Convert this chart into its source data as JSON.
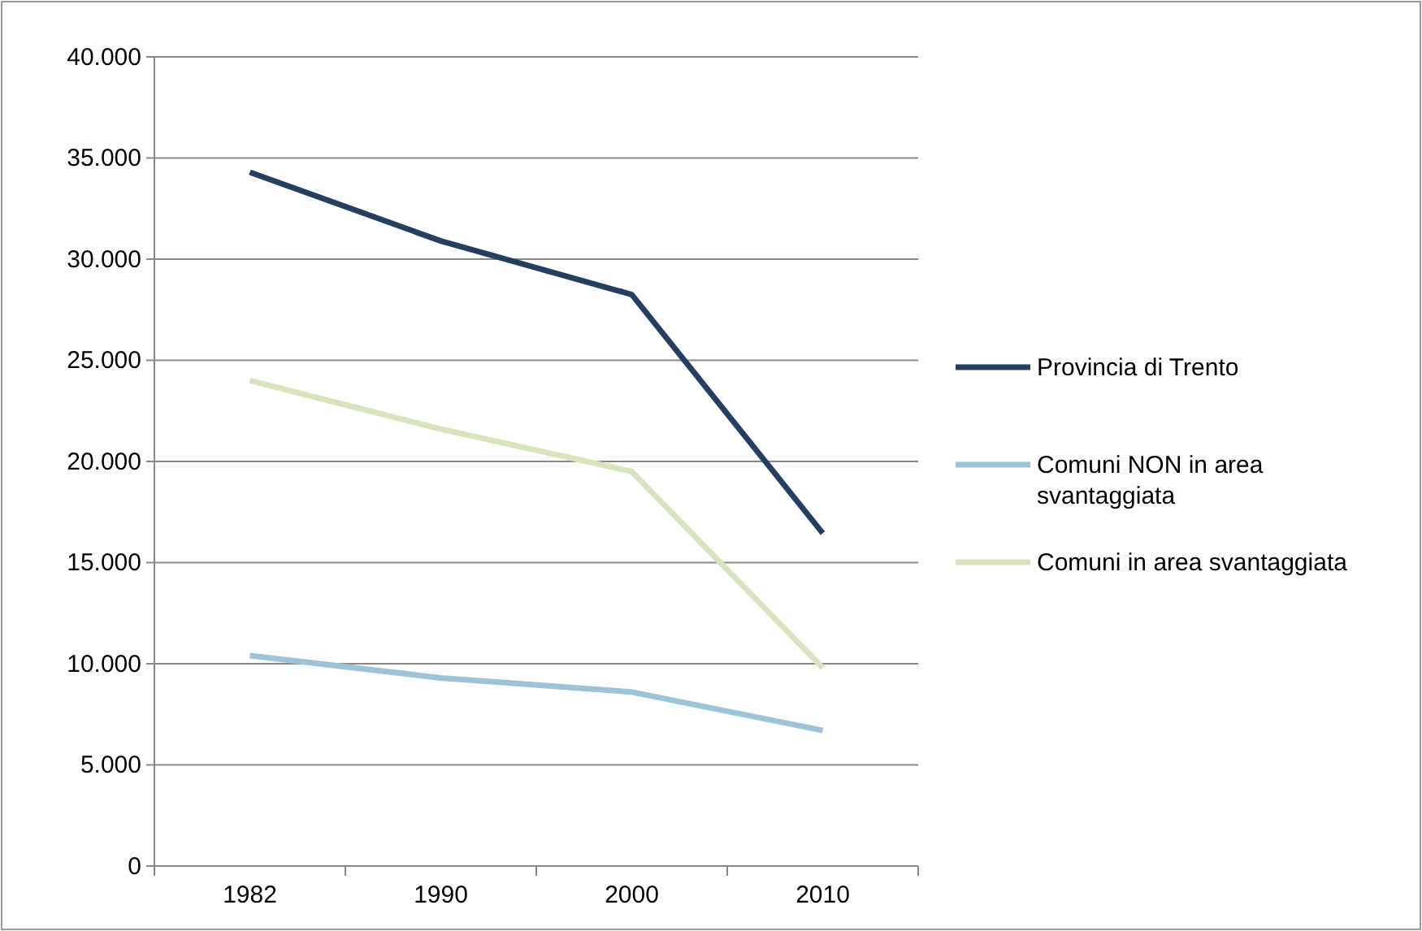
{
  "chart_data": {
    "type": "line",
    "categories": [
      "1982",
      "1990",
      "2000",
      "2010"
    ],
    "series": [
      {
        "name": "Provincia di Trento",
        "color": "#243f60",
        "values": [
          34300,
          30900,
          28250,
          16450
        ]
      },
      {
        "name": "Comuni NON in area svantaggiata",
        "color": "#9dc3d8",
        "values": [
          10400,
          9300,
          8600,
          6700
        ]
      },
      {
        "name": "Comuni in area svantaggiata",
        "color": "#d7e4bd",
        "values": [
          24000,
          21600,
          19500,
          9800
        ]
      }
    ],
    "ylim": [
      0,
      40000
    ],
    "yticks": [
      {
        "value": 0,
        "label": "0"
      },
      {
        "value": 5000,
        "label": "5.000"
      },
      {
        "value": 10000,
        "label": "10.000"
      },
      {
        "value": 15000,
        "label": "15.000"
      },
      {
        "value": 20000,
        "label": "20.000"
      },
      {
        "value": 25000,
        "label": "25.000"
      },
      {
        "value": 30000,
        "label": "30.000"
      },
      {
        "value": 35000,
        "label": "35.000"
      },
      {
        "value": 40000,
        "label": "40.000"
      }
    ],
    "grid": "y",
    "legend": "right",
    "marker": "none",
    "line_style": "solid"
  }
}
